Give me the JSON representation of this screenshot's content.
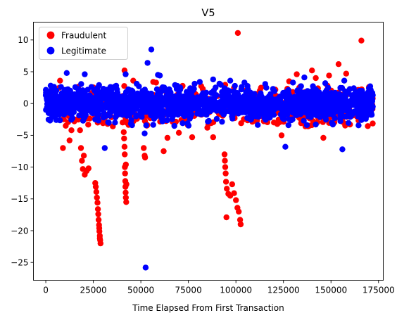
{
  "chart_data": {
    "type": "scatter",
    "title": "V5",
    "xlabel": "Time Elapsed From First Transaction",
    "ylabel": "",
    "xlim": [
      -6500,
      177500
    ],
    "ylim": [
      -27.8,
      12.8
    ],
    "xticks": [
      0,
      25000,
      50000,
      75000,
      100000,
      125000,
      150000,
      175000
    ],
    "yticks": [
      -25,
      -20,
      -15,
      -10,
      -5,
      0,
      5,
      10
    ],
    "legend_position": "top-left",
    "series": [
      {
        "name": "Fraudulent",
        "color": "#ff0000",
        "dense_band": {
          "bands": [
            [
              7000,
              100000
            ],
            [
              100000,
              125000
            ],
            [
              125000,
              172000
            ]
          ],
          "center_y": -0.7,
          "spread_y": 1.6,
          "count_per_band": [
            220,
            60,
            160
          ],
          "seed": 11
        },
        "points": [
          [
            2000,
            1.4
          ],
          [
            5000,
            -1.2
          ],
          [
            7500,
            3.6
          ],
          [
            9000,
            -7.0
          ],
          [
            10500,
            -3.5
          ],
          [
            12500,
            -5.8
          ],
          [
            13500,
            -4.2
          ],
          [
            15000,
            -2.8
          ],
          [
            18500,
            -7.0
          ],
          [
            19000,
            -9.0
          ],
          [
            19500,
            -10.3
          ],
          [
            20500,
            -11.2
          ],
          [
            21500,
            -10.6
          ],
          [
            22500,
            -10.2
          ],
          [
            20000,
            -8.2
          ],
          [
            18000,
            -4.2
          ],
          [
            26000,
            -12.5
          ],
          [
            26300,
            -13.1
          ],
          [
            26600,
            -13.9
          ],
          [
            26900,
            -14.8
          ],
          [
            27200,
            -15.6
          ],
          [
            27400,
            -16.6
          ],
          [
            27600,
            -17.4
          ],
          [
            27800,
            -18.3
          ],
          [
            28000,
            -19.1
          ],
          [
            28200,
            -20.1
          ],
          [
            28400,
            -20.8
          ],
          [
            28600,
            -21.5
          ],
          [
            28800,
            -22.0
          ],
          [
            28400,
            -21.2
          ],
          [
            28100,
            -19.6
          ],
          [
            41000,
            -4.5
          ],
          [
            41200,
            -5.5
          ],
          [
            41400,
            -6.8
          ],
          [
            41500,
            -8.0
          ],
          [
            41600,
            -10.0
          ],
          [
            41700,
            -11.0
          ],
          [
            41800,
            -12.2
          ],
          [
            41900,
            -13.1
          ],
          [
            42000,
            -14.0
          ],
          [
            42100,
            -14.8
          ],
          [
            42300,
            -15.5
          ],
          [
            42400,
            -12.7
          ],
          [
            42100,
            -9.6
          ],
          [
            41400,
            5.2
          ],
          [
            46000,
            3.6
          ],
          [
            48000,
            -2.4
          ],
          [
            51500,
            -7.0
          ],
          [
            52000,
            -8.2
          ],
          [
            52200,
            -8.5
          ],
          [
            56500,
            3.4
          ],
          [
            58000,
            3.3
          ],
          [
            62000,
            -7.5
          ],
          [
            64000,
            -5.4
          ],
          [
            70000,
            -4.6
          ],
          [
            77000,
            -5.3
          ],
          [
            85000,
            -3.8
          ],
          [
            88000,
            -5.3
          ],
          [
            94000,
            -8.0
          ],
          [
            94200,
            -9.0
          ],
          [
            94400,
            -10.0
          ],
          [
            94600,
            -11.0
          ],
          [
            94800,
            -12.3
          ],
          [
            95200,
            -13.4
          ],
          [
            96000,
            -14.2
          ],
          [
            97000,
            -14.5
          ],
          [
            99000,
            -14.1
          ],
          [
            100000,
            -15.2
          ],
          [
            100800,
            -16.4
          ],
          [
            101500,
            -17.0
          ],
          [
            102200,
            -18.3
          ],
          [
            102500,
            -19.0
          ],
          [
            95000,
            -17.9
          ],
          [
            98000,
            -12.7
          ],
          [
            101000,
            11.1
          ],
          [
            99000,
            2.5
          ],
          [
            124000,
            -5.0
          ],
          [
            128000,
            3.5
          ],
          [
            132000,
            4.6
          ],
          [
            138000,
            -3.6
          ],
          [
            140000,
            5.2
          ],
          [
            142000,
            4.0
          ],
          [
            146000,
            -5.4
          ],
          [
            149000,
            4.4
          ],
          [
            154000,
            6.2
          ],
          [
            158000,
            4.7
          ],
          [
            160000,
            -3.3
          ],
          [
            166000,
            9.9
          ],
          [
            170000,
            2.6
          ]
        ]
      },
      {
        "name": "Legitimate",
        "color": "#0000ff",
        "dense_band": {
          "bands": [
            [
              0,
              100000
            ],
            [
              100000,
              125000
            ],
            [
              125000,
              172000
            ]
          ],
          "center_y": 0.0,
          "spread_y": 1.2,
          "count_per_band": [
            900,
            200,
            550
          ],
          "seed": 7
        },
        "points": [
          [
            0,
            1.3
          ],
          [
            1500,
            -1.5
          ],
          [
            3000,
            2.2
          ],
          [
            5500,
            -2.6
          ],
          [
            8000,
            2.6
          ],
          [
            10000,
            -1.1
          ],
          [
            11000,
            4.8
          ],
          [
            14000,
            -2.3
          ],
          [
            20500,
            4.6
          ],
          [
            21000,
            -1.8
          ],
          [
            24000,
            2.6
          ],
          [
            26000,
            -2.5
          ],
          [
            28000,
            2.9
          ],
          [
            31000,
            -7.0
          ],
          [
            34000,
            2.6
          ],
          [
            37000,
            2.8
          ],
          [
            42000,
            4.6
          ],
          [
            45000,
            -2.6
          ],
          [
            49000,
            2.7
          ],
          [
            52000,
            -4.7
          ],
          [
            53500,
            6.4
          ],
          [
            55500,
            8.5
          ],
          [
            59000,
            4.5
          ],
          [
            60000,
            4.4
          ],
          [
            52500,
            -25.8
          ],
          [
            68000,
            2.9
          ],
          [
            72000,
            -3.1
          ],
          [
            76000,
            2.4
          ],
          [
            81000,
            3.4
          ],
          [
            88000,
            3.8
          ],
          [
            94000,
            2.4
          ],
          [
            97000,
            3.6
          ],
          [
            99000,
            1.9
          ],
          [
            103000,
            2.6
          ],
          [
            104500,
            3.3
          ],
          [
            113000,
            1.6
          ],
          [
            126000,
            -6.8
          ],
          [
            130000,
            3.3
          ],
          [
            136000,
            4.1
          ],
          [
            142000,
            -3.3
          ],
          [
            147000,
            3.2
          ],
          [
            151000,
            -3.3
          ],
          [
            156000,
            -7.2
          ],
          [
            157000,
            3.6
          ],
          [
            162000,
            2.4
          ],
          [
            166000,
            -2.6
          ],
          [
            170000,
            2.4
          ],
          [
            172000,
            1.3
          ]
        ]
      }
    ]
  }
}
